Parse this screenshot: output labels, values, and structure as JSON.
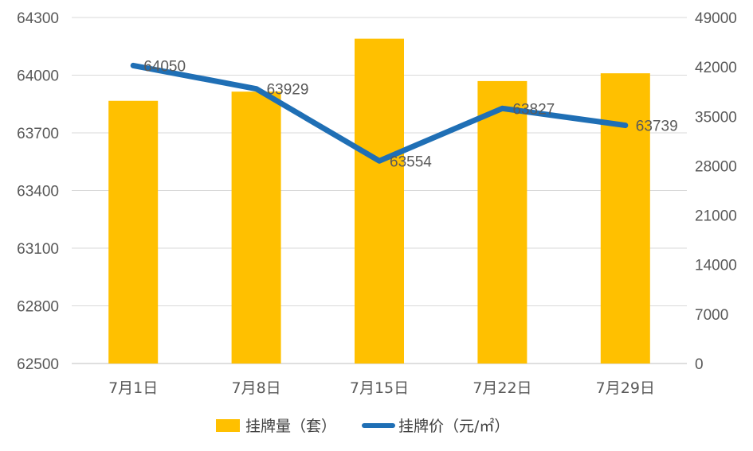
{
  "chart_data": {
    "type": "bar",
    "categories": [
      "7月1日",
      "7月8日",
      "7月15日",
      "7月22日",
      "7月29日"
    ],
    "series": [
      {
        "name": "挂牌量（套）",
        "type": "bar",
        "axis": "right",
        "values": [
          37200,
          38500,
          46000,
          40000,
          41100
        ],
        "color": "#FFC000"
      },
      {
        "name": "挂牌价（元/㎡）",
        "type": "line",
        "axis": "left",
        "values": [
          64050,
          63929,
          63554,
          63827,
          63739
        ],
        "labels": [
          "64050",
          "63929",
          "63554",
          "63827",
          "63739"
        ],
        "color": "#1F6FB5"
      }
    ],
    "y_left": {
      "min": 62500,
      "max": 64300,
      "ticks": [
        "62500",
        "62800",
        "63100",
        "63400",
        "63700",
        "64000",
        "64300"
      ]
    },
    "y_right": {
      "min": 0,
      "max": 49000,
      "ticks": [
        "0",
        "7000",
        "14000",
        "21000",
        "28000",
        "35000",
        "42000",
        "49000"
      ]
    },
    "grid": true,
    "legend_position": "bottom"
  }
}
